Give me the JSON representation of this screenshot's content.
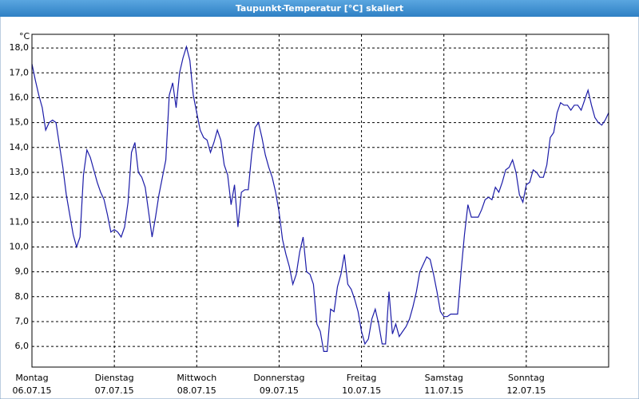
{
  "chart_data": {
    "type": "line",
    "title": "Taupunkt-Temperatur [°C] skaliert",
    "y_unit": "°C",
    "x": [
      0,
      1,
      2,
      3,
      4,
      5,
      6,
      7,
      8,
      9,
      10,
      11,
      12,
      13,
      14,
      15,
      16,
      17,
      18,
      19,
      20,
      21,
      22,
      23,
      24,
      25,
      26,
      27,
      28,
      29,
      30,
      31,
      32,
      33,
      34,
      35,
      36,
      37,
      38,
      39,
      40,
      41,
      42,
      43,
      44,
      45,
      46,
      47,
      48,
      49,
      50,
      51,
      52,
      53,
      54,
      55,
      56,
      57,
      58,
      59,
      60,
      61,
      62,
      63,
      64,
      65,
      66,
      67,
      68,
      69,
      70,
      71,
      72,
      73,
      74,
      75,
      76,
      77,
      78,
      79,
      80,
      81,
      82,
      83,
      84,
      85,
      86,
      87,
      88,
      89,
      90,
      91,
      92,
      93,
      94,
      95,
      96,
      97,
      98,
      99,
      100,
      101,
      102,
      103,
      104,
      105,
      106,
      107,
      108,
      109,
      110,
      111,
      112,
      113,
      114,
      115,
      116,
      117,
      118,
      119,
      120,
      121,
      122,
      123,
      124,
      125,
      126,
      127,
      128,
      129,
      130,
      131,
      132,
      133,
      134,
      135,
      136,
      137,
      138,
      139,
      140,
      141,
      142,
      143,
      144,
      145,
      146,
      147,
      148,
      149,
      150,
      151,
      152,
      153,
      154,
      155,
      156,
      157,
      158,
      159,
      160,
      161,
      162,
      163,
      164,
      165,
      166,
      167,
      168
    ],
    "values": [
      17.36,
      16.7,
      16.1,
      15.6,
      14.7,
      15.0,
      15.1,
      15.0,
      14.1,
      13.2,
      12.1,
      11.3,
      10.5,
      10.0,
      10.4,
      12.9,
      13.9,
      13.6,
      13.1,
      12.6,
      12.2,
      11.9,
      11.3,
      10.6,
      10.7,
      10.6,
      10.4,
      10.8,
      11.8,
      13.8,
      14.2,
      13.0,
      12.8,
      12.4,
      11.4,
      10.4,
      11.2,
      12.1,
      12.8,
      13.5,
      16.1,
      16.6,
      15.6,
      17.0,
      17.6,
      18.05,
      17.5,
      16.1,
      15.4,
      14.7,
      14.4,
      14.3,
      13.8,
      14.2,
      14.7,
      14.3,
      13.3,
      12.9,
      11.7,
      12.5,
      10.8,
      12.2,
      12.3,
      12.3,
      13.7,
      14.8,
      15.0,
      14.4,
      13.7,
      13.2,
      12.8,
      12.2,
      11.4,
      10.3,
      9.7,
      9.2,
      8.5,
      8.9,
      9.8,
      10.4,
      9.0,
      8.9,
      8.5,
      6.9,
      6.6,
      5.8,
      5.8,
      7.5,
      7.4,
      8.4,
      8.9,
      9.7,
      8.5,
      8.3,
      7.9,
      7.4,
      6.6,
      6.1,
      6.3,
      7.1,
      7.5,
      6.9,
      6.1,
      6.1,
      8.2,
      6.5,
      6.9,
      6.4,
      6.6,
      6.8,
      7.1,
      7.6,
      8.2,
      9.0,
      9.3,
      9.6,
      9.5,
      8.9,
      8.2,
      7.4,
      7.2,
      7.2,
      7.3,
      7.3,
      7.3,
      9.0,
      10.5,
      11.7,
      11.2,
      11.2,
      11.2,
      11.5,
      11.9,
      12.0,
      11.9,
      12.4,
      12.2,
      12.6,
      13.1,
      13.2,
      13.5,
      13.0,
      12.1,
      11.8,
      12.5,
      12.6,
      13.1,
      13.0,
      12.8,
      12.8,
      13.3,
      14.4,
      14.6,
      15.4,
      15.8,
      15.7,
      15.7,
      15.5,
      15.7,
      15.7,
      15.5,
      15.9,
      16.3,
      15.7,
      15.2,
      15.0,
      14.9,
      15.1,
      15.4
    ],
    "color": "#1c1ca8",
    "xlim": [
      0,
      168
    ],
    "xticks": [
      {
        "value": 0,
        "label": "Montag"
      },
      {
        "value": 24,
        "label": "Dienstag"
      },
      {
        "value": 48,
        "label": "Mittwoch"
      },
      {
        "value": 72,
        "label": "Donnerstag"
      },
      {
        "value": 96,
        "label": "Freitag"
      },
      {
        "value": 120,
        "label": "Samstag"
      },
      {
        "value": 144,
        "label": "Sonntag"
      }
    ],
    "x_tick_dates": [
      "06.07.15",
      "07.07.15",
      "08.07.15",
      "09.07.15",
      "10.07.15",
      "11.07.15",
      "12.07.15"
    ],
    "ylim": [
      5.17,
      18.55
    ],
    "yticks": [
      {
        "value": 6,
        "label": "6,0"
      },
      {
        "value": 7,
        "label": "7,0"
      },
      {
        "value": 8,
        "label": "8,0"
      },
      {
        "value": 9,
        "label": "9,0"
      },
      {
        "value": 10,
        "label": "10,0"
      },
      {
        "value": 11,
        "label": "11,0"
      },
      {
        "value": 12,
        "label": "12,0"
      },
      {
        "value": 13,
        "label": "13,0"
      },
      {
        "value": 14,
        "label": "14,0"
      },
      {
        "value": 15,
        "label": "15,0"
      },
      {
        "value": 16,
        "label": "16,0"
      },
      {
        "value": 17,
        "label": "17,0"
      },
      {
        "value": 18,
        "label": "18,0"
      }
    ],
    "grid": true
  }
}
